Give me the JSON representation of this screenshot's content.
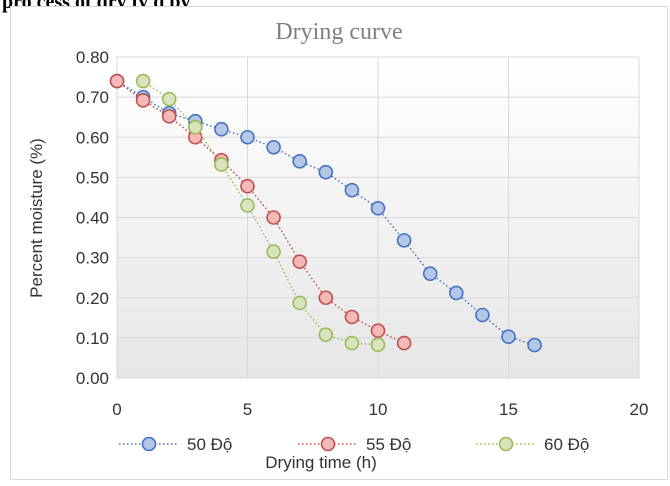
{
  "page": {
    "heading_fragment": "pro cess of dry ty q by"
  },
  "chart_data": {
    "type": "line",
    "title": "Drying curve",
    "xlabel": "Drying time (h)",
    "ylabel": "Percent moisture (%)",
    "xlim": [
      0,
      20
    ],
    "ylim": [
      0,
      0.8
    ],
    "x_ticks": [
      "0",
      "5",
      "10",
      "15",
      "20"
    ],
    "y_ticks": [
      "0.00",
      "0.10",
      "0.20",
      "0.30",
      "0.40",
      "0.50",
      "0.60",
      "0.70",
      "0.80"
    ],
    "grid": true,
    "legend_position": "bottom",
    "series": [
      {
        "name": "50 Độ",
        "color": "#4472c4",
        "fill": "#b4c7e7",
        "x": [
          0,
          1,
          2,
          3,
          4,
          5,
          6,
          7,
          8,
          9,
          10,
          11,
          12,
          13,
          14,
          15,
          16
        ],
        "y": [
          0.74,
          0.7,
          0.66,
          0.64,
          0.62,
          0.6,
          0.575,
          0.54,
          0.513,
          0.468,
          0.423,
          0.343,
          0.26,
          0.212,
          0.157,
          0.103,
          0.082
        ]
      },
      {
        "name": "55 Độ",
        "color": "#c0504d",
        "fill": "#f4b8b7",
        "x": [
          0,
          1,
          2,
          3,
          4,
          5,
          6,
          7,
          8,
          9,
          10,
          11
        ],
        "y": [
          0.74,
          0.692,
          0.652,
          0.6,
          0.543,
          0.478,
          0.4,
          0.29,
          0.2,
          0.152,
          0.118,
          0.087
        ]
      },
      {
        "name": "60 Độ",
        "color": "#9bbb59",
        "fill": "#d7e4bd",
        "x": [
          1,
          2,
          3,
          4,
          5,
          6,
          7,
          8,
          9,
          10
        ],
        "y": [
          0.74,
          0.695,
          0.625,
          0.532,
          0.43,
          0.315,
          0.187,
          0.108,
          0.087,
          0.083
        ]
      }
    ]
  }
}
